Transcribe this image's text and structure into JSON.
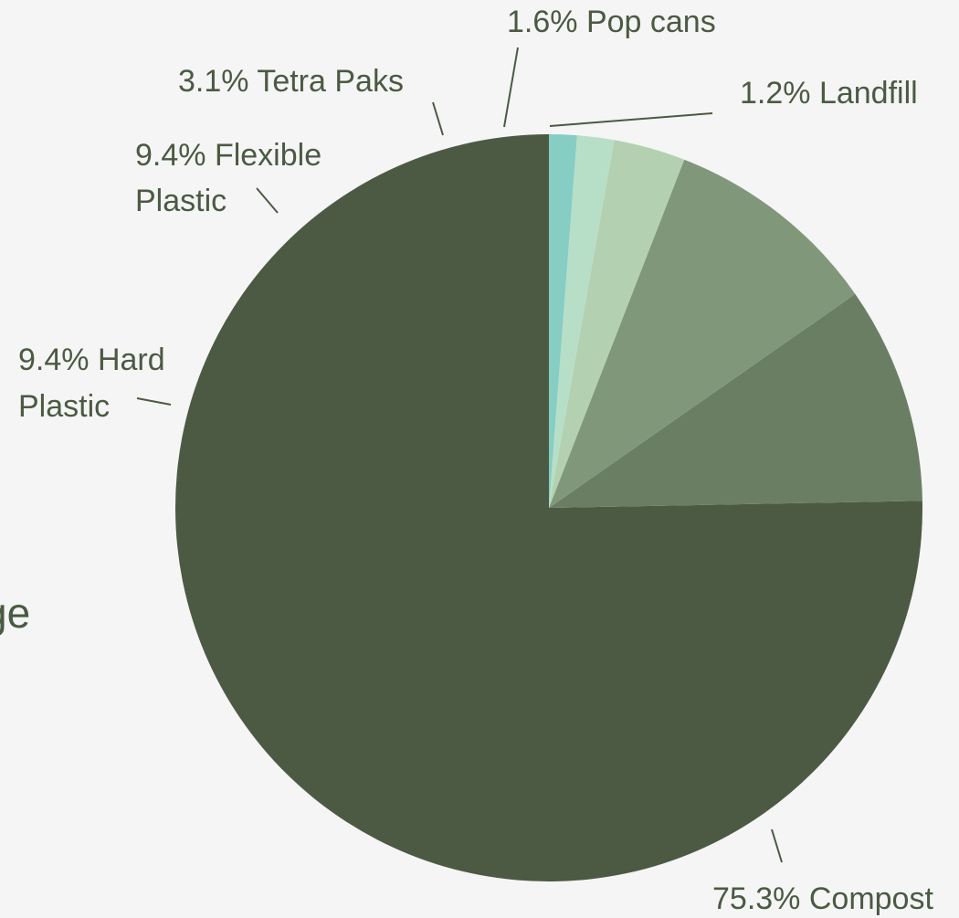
{
  "partial_text": "ge",
  "chart_data": {
    "type": "pie",
    "title": "",
    "start": "top",
    "direction": "counterclockwise",
    "slices": [
      {
        "label": "Compost",
        "value": 75.3,
        "display": "75.3% Compost",
        "color": "#4c5a43"
      },
      {
        "label": "Hard Plastic",
        "value": 9.4,
        "display_lines": [
          "9.4% Hard",
          "Plastic"
        ],
        "color": "#6a7e64"
      },
      {
        "label": "Flexible Plastic",
        "value": 9.4,
        "display_lines": [
          "9.4% Flexible",
          "Plastic"
        ],
        "color": "#81977a"
      },
      {
        "label": "Tetra Paks",
        "value": 3.1,
        "display": "3.1% Tetra Paks",
        "color": "#b3d1b0"
      },
      {
        "label": "Pop cans",
        "value": 1.6,
        "display": "1.6% Pop cans",
        "color": "#b7dfc7"
      },
      {
        "label": "Landfill",
        "value": 1.2,
        "display": "1.2% Landfill",
        "color": "#86cdc4"
      }
    ]
  }
}
